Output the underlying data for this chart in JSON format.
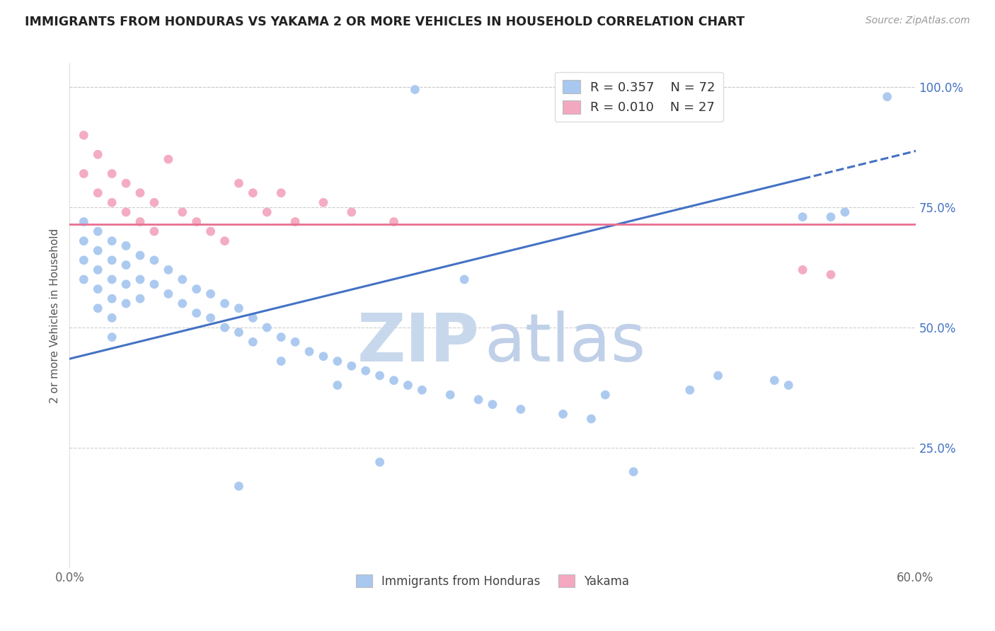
{
  "title": "IMMIGRANTS FROM HONDURAS VS YAKAMA 2 OR MORE VEHICLES IN HOUSEHOLD CORRELATION CHART",
  "source": "Source: ZipAtlas.com",
  "ylabel": "2 or more Vehicles in Household",
  "legend_labels_bottom": [
    "Immigrants from Honduras",
    "Yakama"
  ],
  "blue_color": "#a8c8f0",
  "pink_color": "#f4a8c0",
  "blue_line_color": "#4472c4",
  "pink_line_color": "#e87090",
  "watermark_zip_color": "#c8d8ec",
  "watermark_atlas_color": "#c0d0e8",
  "xlim": [
    0.0,
    0.6
  ],
  "ylim": [
    0.0,
    1.05
  ],
  "blue_line_intercept": 0.435,
  "blue_line_slope": 0.72,
  "blue_line_solid_end": 0.52,
  "pink_line_y": 0.715,
  "ytick_vals": [
    0.25,
    0.5,
    0.75,
    1.0
  ],
  "ytick_labels": [
    "25.0%",
    "50.0%",
    "75.0%",
    "100.0%"
  ],
  "blue_x": [
    0.245,
    0.01,
    0.01,
    0.01,
    0.01,
    0.02,
    0.02,
    0.02,
    0.02,
    0.02,
    0.03,
    0.03,
    0.03,
    0.03,
    0.03,
    0.03,
    0.04,
    0.04,
    0.04,
    0.04,
    0.05,
    0.05,
    0.05,
    0.06,
    0.06,
    0.07,
    0.07,
    0.08,
    0.08,
    0.09,
    0.09,
    0.1,
    0.1,
    0.11,
    0.11,
    0.12,
    0.12,
    0.13,
    0.13,
    0.14,
    0.15,
    0.15,
    0.16,
    0.17,
    0.18,
    0.19,
    0.19,
    0.2,
    0.21,
    0.22,
    0.23,
    0.24,
    0.25,
    0.27,
    0.28,
    0.29,
    0.3,
    0.32,
    0.35,
    0.37,
    0.38,
    0.4,
    0.44,
    0.46,
    0.5,
    0.51,
    0.52,
    0.54,
    0.55,
    0.58,
    0.12,
    0.22
  ],
  "blue_y": [
    0.995,
    0.72,
    0.68,
    0.64,
    0.6,
    0.7,
    0.66,
    0.62,
    0.58,
    0.54,
    0.68,
    0.64,
    0.6,
    0.56,
    0.52,
    0.48,
    0.67,
    0.63,
    0.59,
    0.55,
    0.65,
    0.6,
    0.56,
    0.64,
    0.59,
    0.62,
    0.57,
    0.6,
    0.55,
    0.58,
    0.53,
    0.57,
    0.52,
    0.55,
    0.5,
    0.54,
    0.49,
    0.52,
    0.47,
    0.5,
    0.48,
    0.43,
    0.47,
    0.45,
    0.44,
    0.43,
    0.38,
    0.42,
    0.41,
    0.4,
    0.39,
    0.38,
    0.37,
    0.36,
    0.6,
    0.35,
    0.34,
    0.33,
    0.32,
    0.31,
    0.36,
    0.2,
    0.37,
    0.4,
    0.39,
    0.38,
    0.73,
    0.73,
    0.74,
    0.98,
    0.17,
    0.22
  ],
  "pink_x": [
    0.01,
    0.01,
    0.02,
    0.02,
    0.03,
    0.03,
    0.04,
    0.04,
    0.05,
    0.05,
    0.06,
    0.06,
    0.07,
    0.08,
    0.09,
    0.1,
    0.11,
    0.12,
    0.13,
    0.14,
    0.15,
    0.16,
    0.18,
    0.2,
    0.23,
    0.52,
    0.54
  ],
  "pink_y": [
    0.9,
    0.82,
    0.86,
    0.78,
    0.82,
    0.76,
    0.8,
    0.74,
    0.78,
    0.72,
    0.76,
    0.7,
    0.85,
    0.74,
    0.72,
    0.7,
    0.68,
    0.8,
    0.78,
    0.74,
    0.78,
    0.72,
    0.76,
    0.74,
    0.72,
    0.62,
    0.61
  ]
}
